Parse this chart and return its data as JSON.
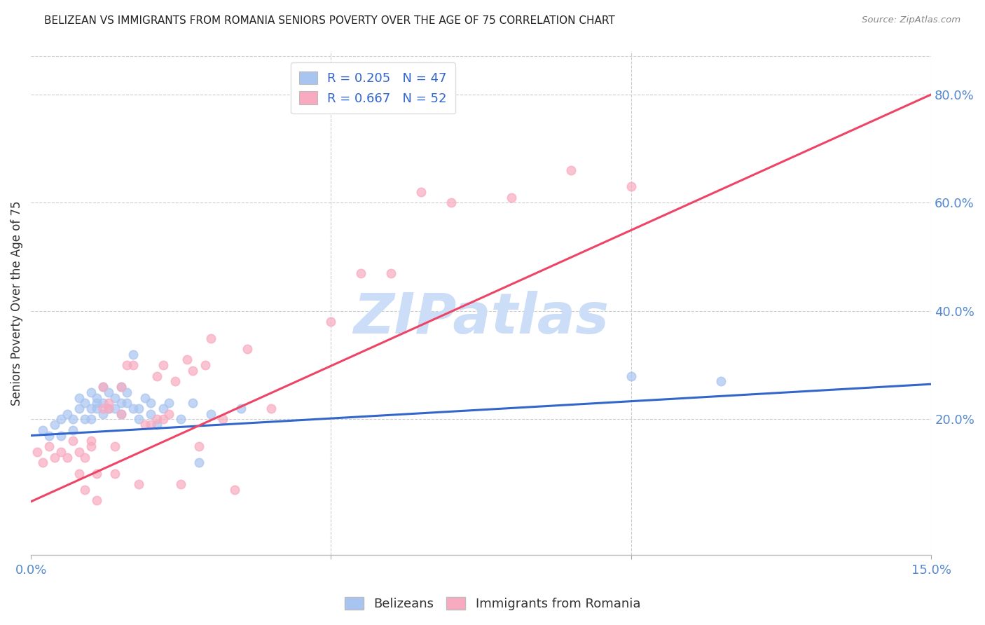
{
  "title": "BELIZEAN VS IMMIGRANTS FROM ROMANIA SENIORS POVERTY OVER THE AGE OF 75 CORRELATION CHART",
  "source": "Source: ZipAtlas.com",
  "ylabel": "Seniors Poverty Over the Age of 75",
  "xlim": [
    0.0,
    0.15
  ],
  "ylim": [
    -0.05,
    0.88
  ],
  "yticks_right": [
    0.2,
    0.4,
    0.6,
    0.8
  ],
  "ytick_labels_right": [
    "20.0%",
    "40.0%",
    "60.0%",
    "80.0%"
  ],
  "blue_R": 0.205,
  "blue_N": 47,
  "pink_R": 0.667,
  "pink_N": 52,
  "blue_color": "#a8c4f0",
  "pink_color": "#f8aac0",
  "blue_line_color": "#3366cc",
  "pink_line_color": "#ee4466",
  "title_color": "#222222",
  "axis_label_color": "#333333",
  "tick_color": "#5588cc",
  "legend_text_color": "#3366cc",
  "watermark": "ZIPatlas",
  "watermark_color": "#ccddf8",
  "background_color": "#ffffff",
  "grid_color": "#cccccc",
  "blue_scatter_x": [
    0.002,
    0.003,
    0.004,
    0.005,
    0.005,
    0.006,
    0.007,
    0.007,
    0.008,
    0.008,
    0.009,
    0.009,
    0.01,
    0.01,
    0.01,
    0.011,
    0.011,
    0.011,
    0.012,
    0.012,
    0.012,
    0.013,
    0.013,
    0.014,
    0.014,
    0.015,
    0.015,
    0.015,
    0.016,
    0.016,
    0.017,
    0.017,
    0.018,
    0.018,
    0.019,
    0.02,
    0.02,
    0.021,
    0.022,
    0.023,
    0.025,
    0.027,
    0.028,
    0.03,
    0.035,
    0.1,
    0.115
  ],
  "blue_scatter_y": [
    0.18,
    0.17,
    0.19,
    0.17,
    0.2,
    0.21,
    0.2,
    0.18,
    0.22,
    0.24,
    0.2,
    0.23,
    0.22,
    0.25,
    0.2,
    0.24,
    0.22,
    0.23,
    0.21,
    0.26,
    0.23,
    0.25,
    0.22,
    0.24,
    0.22,
    0.23,
    0.21,
    0.26,
    0.23,
    0.25,
    0.32,
    0.22,
    0.22,
    0.2,
    0.24,
    0.21,
    0.23,
    0.19,
    0.22,
    0.23,
    0.2,
    0.23,
    0.12,
    0.21,
    0.22,
    0.28,
    0.27
  ],
  "pink_scatter_x": [
    0.001,
    0.002,
    0.003,
    0.004,
    0.005,
    0.006,
    0.007,
    0.008,
    0.008,
    0.009,
    0.009,
    0.01,
    0.01,
    0.011,
    0.011,
    0.012,
    0.012,
    0.013,
    0.013,
    0.014,
    0.014,
    0.015,
    0.015,
    0.016,
    0.017,
    0.018,
    0.019,
    0.02,
    0.021,
    0.021,
    0.022,
    0.022,
    0.023,
    0.024,
    0.025,
    0.026,
    0.027,
    0.028,
    0.029,
    0.03,
    0.032,
    0.034,
    0.036,
    0.04,
    0.05,
    0.055,
    0.06,
    0.065,
    0.07,
    0.08,
    0.09,
    0.1
  ],
  "pink_scatter_y": [
    0.14,
    0.12,
    0.15,
    0.13,
    0.14,
    0.13,
    0.16,
    0.14,
    0.1,
    0.13,
    0.07,
    0.15,
    0.16,
    0.1,
    0.05,
    0.22,
    0.26,
    0.22,
    0.23,
    0.15,
    0.1,
    0.26,
    0.21,
    0.3,
    0.3,
    0.08,
    0.19,
    0.19,
    0.2,
    0.28,
    0.2,
    0.3,
    0.21,
    0.27,
    0.08,
    0.31,
    0.29,
    0.15,
    0.3,
    0.35,
    0.2,
    0.07,
    0.33,
    0.22,
    0.38,
    0.47,
    0.47,
    0.62,
    0.6,
    0.61,
    0.66,
    0.63
  ],
  "blue_trend_x": [
    0.0,
    0.15
  ],
  "blue_trend_y": [
    0.17,
    0.265
  ],
  "pink_trend_x": [
    0.0,
    0.15
  ],
  "pink_trend_y": [
    0.048,
    0.8
  ]
}
